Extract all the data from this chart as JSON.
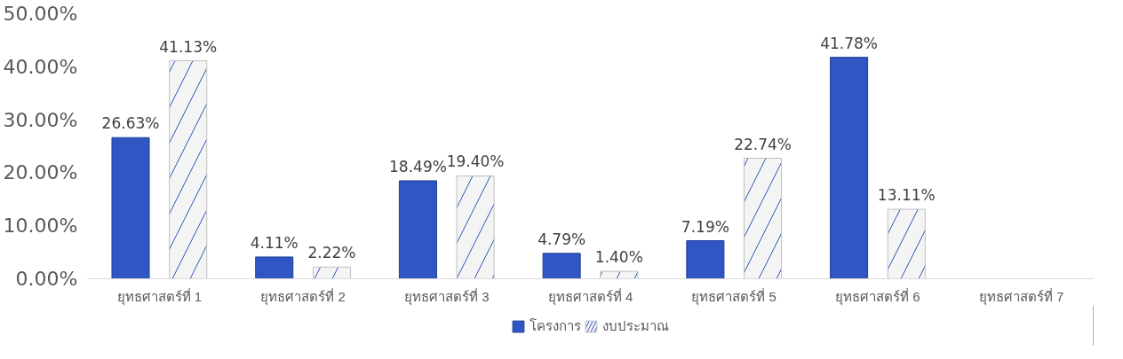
{
  "chart_data": {
    "type": "bar",
    "categories": [
      "ยุทธศาสตร์ที่ 1",
      "ยุทธศาสตร์ที่ 2",
      "ยุทธศาสตร์ที่ 3",
      "ยุทธศาสตร์ที่ 4",
      "ยุทธศาสตร์ที่ 5",
      "ยุทธศาสตร์ที่ 6",
      "ยุทธศาสตร์ที่ 7"
    ],
    "series": [
      {
        "name": "โครงการ",
        "color": "#2f56c2",
        "values": [
          26.63,
          4.11,
          18.49,
          4.79,
          7.19,
          41.78,
          null
        ],
        "value_labels": [
          "26.63%",
          "4.11%",
          "18.49%",
          "4.79%",
          "7.19%",
          "41.78%",
          null
        ]
      },
      {
        "name": "งบประมาณ",
        "color": "#f4f4f4",
        "values": [
          41.13,
          2.22,
          19.4,
          1.4,
          22.74,
          13.11,
          null
        ],
        "value_labels": [
          "41.13%",
          "2.22%",
          "19.40%",
          "1.40%",
          "22.74%",
          "13.11%",
          null
        ]
      }
    ],
    "ylim": [
      0,
      50
    ],
    "yticks": [
      {
        "value": 0,
        "label": "0.00%"
      },
      {
        "value": 10,
        "label": "10.00%"
      },
      {
        "value": 20,
        "label": "20.00%"
      },
      {
        "value": 30,
        "label": "30.00%"
      },
      {
        "value": 40,
        "label": "40.00%"
      },
      {
        "value": 50,
        "label": "50.00%"
      }
    ],
    "grid": false,
    "legend": "bottom"
  }
}
